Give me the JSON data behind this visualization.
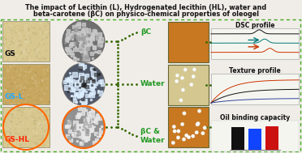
{
  "title_line1": "The impact of Lecithin (L), Hydrogenated lecithin (HL), water and",
  "title_line2": "beta-carotene (βC) on physico-chemical properties of oleogel",
  "title_fontsize": 5.8,
  "background_color": "#f0ede8",
  "border_color": "#44aa22",
  "left_labels": [
    "GS",
    "GS-L",
    "GS-HL"
  ],
  "left_label_colors": [
    "#111111",
    "#22aaff",
    "#ff2200"
  ],
  "center_labels": [
    "βC",
    "Water",
    "βC &\nWater"
  ],
  "right_panel_titles": [
    "DSC profile",
    "Texture profile",
    "Oil binding capacity"
  ],
  "bar_colors": [
    "#111111",
    "#1144ff",
    "#cc1111"
  ],
  "dsc_colors": [
    "#111111",
    "#007777",
    "#cc3300"
  ],
  "texture_colors": [
    "#cc3300",
    "#111111",
    "#334499"
  ],
  "dot_color": "#336600",
  "photo_colors": [
    "#d8c890",
    "#c8a860",
    "#d8c890"
  ],
  "micro_colors": [
    "#707070",
    "#505868",
    "#909090"
  ],
  "oleo_colors": [
    "#c87820",
    "#d4c890",
    "#c87820"
  ],
  "bar_values": [
    0.95,
    0.88,
    0.97
  ],
  "bar_max": 1.0
}
